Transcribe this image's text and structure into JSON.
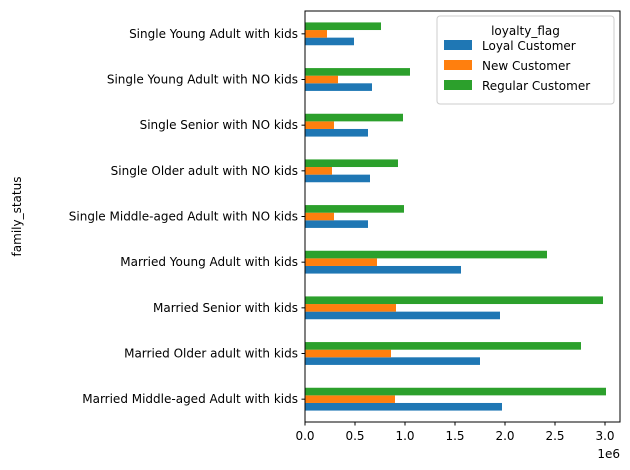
{
  "chart_data": {
    "type": "bar",
    "orientation": "horizontal",
    "title": "",
    "xlabel": "",
    "ylabel": "family_status",
    "x_offset_label": "1e6",
    "xlim": [
      0,
      3.15
    ],
    "x_ticks": [
      0.0,
      0.5,
      1.0,
      1.5,
      2.0,
      2.5,
      3.0
    ],
    "x_tick_labels": [
      "0.0",
      "0.5",
      "1.0",
      "1.5",
      "2.0",
      "2.5",
      "3.0"
    ],
    "grid": false,
    "legend_position": "top-right",
    "legend_title": "loyalty_flag",
    "categories": [
      "Married Middle-aged Adult with kids",
      "Married Older adult with kids",
      "Married Senior with kids",
      "Married Young Adult with kids",
      "Single Middle-aged Adult with NO kids",
      "Single Older adult with NO kids",
      "Single Senior with NO kids",
      "Single Young Adult with NO kids",
      "Single Young Adult with kids"
    ],
    "series": [
      {
        "name": "Loyal Customer",
        "color": "#1f77b4",
        "values": [
          1.97,
          1.75,
          1.95,
          1.56,
          0.63,
          0.65,
          0.63,
          0.67,
          0.49
        ]
      },
      {
        "name": "New Customer",
        "color": "#ff7f0e",
        "values": [
          0.9,
          0.86,
          0.91,
          0.72,
          0.29,
          0.27,
          0.29,
          0.33,
          0.22
        ]
      },
      {
        "name": "Regular Customer",
        "color": "#2ca02c",
        "values": [
          3.01,
          2.76,
          2.98,
          2.42,
          0.99,
          0.93,
          0.98,
          1.05,
          0.76
        ]
      }
    ]
  }
}
